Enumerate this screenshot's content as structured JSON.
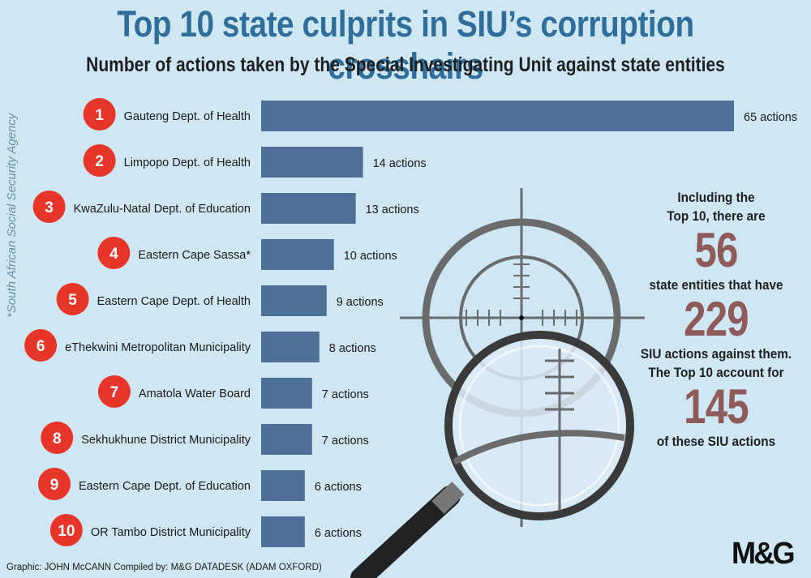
{
  "title": "Top 10 state culprits in SIU’s corruption crosshairs",
  "subtitle": "Number of actions taken by the Special Investigating Unit against state entities",
  "footnote": "*South African Social Security Agency",
  "chart_data": {
    "type": "bar",
    "orientation": "horizontal",
    "ranks": [
      "1",
      "2",
      "3",
      "4",
      "5",
      "6",
      "7",
      "8",
      "9",
      "10"
    ],
    "categories": [
      "Gauteng Dept. of Health",
      "Limpopo Dept. of Health",
      "KwaZulu-Natal Dept. of Education",
      "Eastern Cape Sassa*",
      "Eastern Cape Dept. of Health",
      "eThekwini Metropolitan Municipality",
      "Amatola Water Board",
      "Sekhukhune District Municipality",
      "Eastern Cape Dept. of Education",
      "OR Tambo District Municipality"
    ],
    "values": [
      65,
      14,
      13,
      10,
      9,
      8,
      7,
      7,
      6,
      6
    ],
    "value_labels": [
      "65 actions",
      "14 actions",
      "13 actions",
      "10 actions",
      "9 actions",
      "8 actions",
      "7 actions",
      "7 actions",
      "6 actions",
      "6 actions"
    ],
    "xlim": [
      0,
      65
    ],
    "grid": false,
    "colors": {
      "bar": "#4e6f97",
      "rank_badge": "#e8352a"
    }
  },
  "stats": {
    "line1": "Including the",
    "line2": "Top 10, there are",
    "number1": "56",
    "line3": "state entities that have",
    "number2": "229",
    "line4": "SIU actions against them.",
    "line5": "The Top 10 account for",
    "number3": "145",
    "line6": "of these SIU actions"
  },
  "credit": "Graphic: JOHN McCANN  Compiled by: M&G DATADESK (ADAM OXFORD)",
  "logo": "M&G",
  "colors": {
    "background": "#cfe7f3",
    "title": "#2f6d9b",
    "stat_number": "#8f5a5a"
  },
  "icons": [
    "crosshair-icon",
    "magnifying-glass-icon"
  ]
}
